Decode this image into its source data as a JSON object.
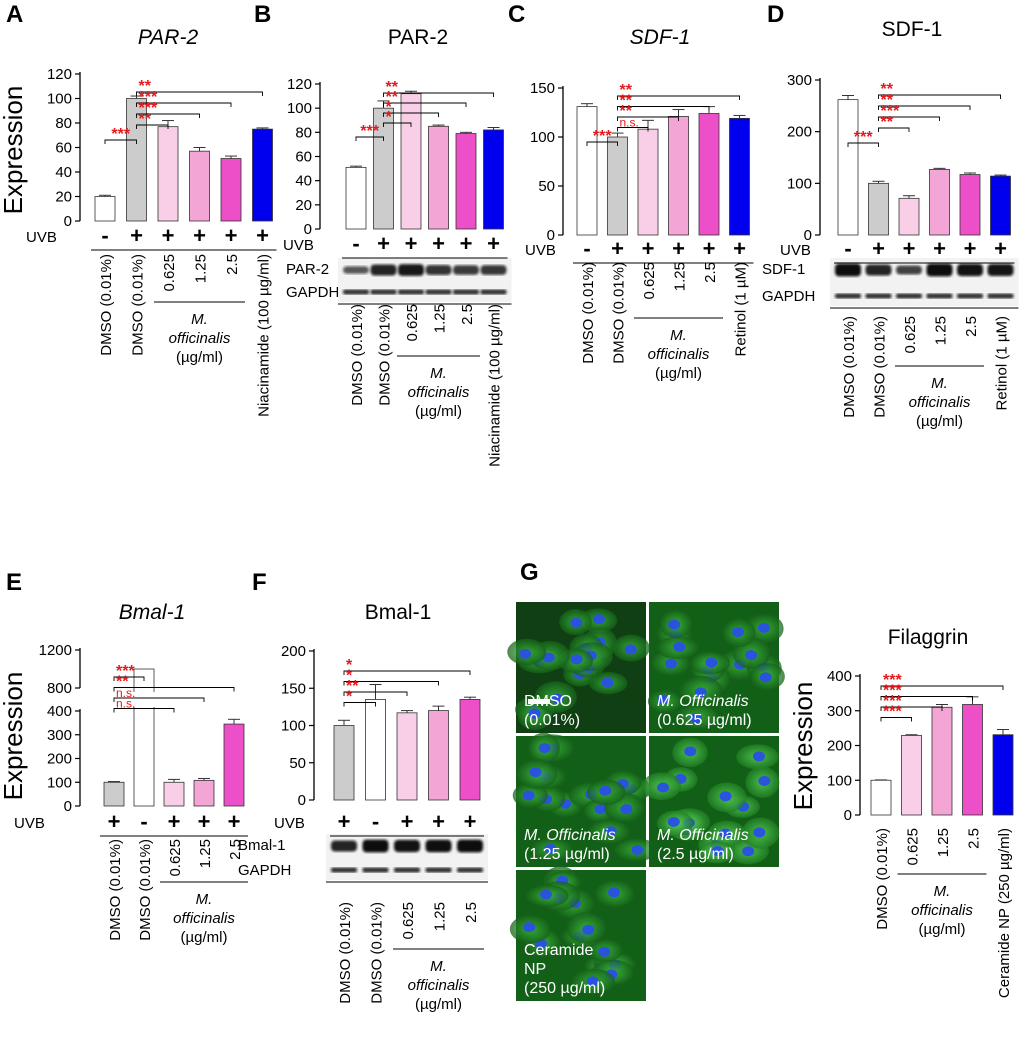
{
  "panels": [
    {
      "letter": "A",
      "title": "PAR-2",
      "title_italic": true,
      "ylabel": "Expression",
      "uvb": [
        "-",
        "+",
        "+",
        "+",
        "+",
        "+"
      ],
      "cat_labels": [
        "DMSO (0.01%)",
        "DMSO (0.01%)",
        "0.625",
        "1.25",
        "2.5",
        "Niacinamide (100 µg/ml)"
      ],
      "mo_label": [
        "M.",
        "officinalis",
        "(µg/ml)"
      ],
      "sig": [
        {
          "text": "***",
          "from": 0,
          "to": 1
        },
        {
          "text": "**",
          "from": 1,
          "to": 5
        },
        {
          "text": "***",
          "from": 1,
          "to": 4
        },
        {
          "text": "***",
          "from": 1,
          "to": 3
        },
        {
          "text": "**",
          "from": 1,
          "to": 2
        }
      ]
    },
    {
      "letter": "B",
      "title": "PAR-2",
      "title_italic": false,
      "uvb": [
        "-",
        "+",
        "+",
        "+",
        "+",
        "+"
      ],
      "cat_labels": [
        "DMSO (0.01%)",
        "DMSO (0.01%)",
        "0.625",
        "1.25",
        "2.5",
        "Niacinamide (100 µg/ml)"
      ],
      "mo_label": [
        "M.",
        "officinalis",
        "(µg/ml)"
      ],
      "blot_labels": [
        "PAR-2",
        "GAPDH"
      ],
      "sig": [
        {
          "text": "***",
          "from": 0,
          "to": 1
        },
        {
          "text": "**",
          "from": 1,
          "to": 5
        },
        {
          "text": "**",
          "from": 1,
          "to": 4
        },
        {
          "text": "*",
          "from": 1,
          "to": 3
        },
        {
          "text": "*",
          "from": 1,
          "to": 2
        }
      ]
    },
    {
      "letter": "C",
      "title": "SDF-1",
      "title_italic": true,
      "uvb": [
        "-",
        "+",
        "+",
        "+",
        "+",
        "+"
      ],
      "cat_labels": [
        "DMSO (0.01%)",
        "DMSO (0.01%)",
        "0.625",
        "1.25",
        "2.5",
        "Retinol (1 µM)"
      ],
      "mo_label": [
        "M.",
        "officinalis",
        "(µg/ml)"
      ],
      "sig": [
        {
          "text": "***",
          "from": 0,
          "to": 1
        },
        {
          "text": "**",
          "from": 1,
          "to": 5
        },
        {
          "text": "**",
          "from": 1,
          "to": 4
        },
        {
          "text": "**",
          "from": 1,
          "to": 3
        },
        {
          "text": "n.s.",
          "from": 1,
          "to": 2
        }
      ]
    },
    {
      "letter": "D",
      "title": "SDF-1",
      "title_italic": false,
      "uvb": [
        "-",
        "+",
        "+",
        "+",
        "+",
        "+"
      ],
      "cat_labels": [
        "DMSO (0.01%)",
        "DMSO (0.01%)",
        "0.625",
        "1.25",
        "2.5",
        "Retinol (1 µM)"
      ],
      "mo_label": [
        "M.",
        "officinalis",
        "(µg/ml)"
      ],
      "blot_labels": [
        "SDF-1",
        "GAPDH"
      ],
      "sig": [
        {
          "text": "***",
          "from": 0,
          "to": 1
        },
        {
          "text": "**",
          "from": 1,
          "to": 5
        },
        {
          "text": "**",
          "from": 1,
          "to": 4
        },
        {
          "text": "***",
          "from": 1,
          "to": 3
        },
        {
          "text": "**",
          "from": 1,
          "to": 2
        }
      ]
    },
    {
      "letter": "E",
      "title": "Bmal-1",
      "title_italic": true,
      "ylabel": "Expression",
      "uvb": [
        "+",
        "-",
        "+",
        "+",
        "+"
      ],
      "cat_labels": [
        "DMSO (0.01%)",
        "DMSO (0.01%)",
        "0.625",
        "1.25",
        "2.5"
      ],
      "mo_label": [
        "M.",
        "officinalis",
        "(µg/ml)"
      ],
      "sig": [
        {
          "text": "***",
          "from": 0,
          "to": 1
        },
        {
          "text": "**",
          "from": 0,
          "to": 4
        },
        {
          "text": "n.s.",
          "from": 0,
          "to": 3
        },
        {
          "text": "n.s.",
          "from": 0,
          "to": 2
        }
      ]
    },
    {
      "letter": "F",
      "title": "Bmal-1",
      "title_italic": false,
      "uvb": [
        "+",
        "-",
        "+",
        "+",
        "+"
      ],
      "cat_labels": [
        "DMSO (0.01%)",
        "DMSO (0.01%)",
        "0.625",
        "1.25",
        "2.5"
      ],
      "mo_label": [
        "M.",
        "officinalis",
        "(µg/ml)"
      ],
      "blot_labels": [
        "Bmal-1",
        "GAPDH"
      ],
      "sig": [
        {
          "text": "*",
          "from": 0,
          "to": 4
        },
        {
          "text": "*",
          "from": 0,
          "to": 3
        },
        {
          "text": "**",
          "from": 0,
          "to": 2
        },
        {
          "text": "*",
          "from": 0,
          "to": 1
        }
      ]
    },
    {
      "letter": "G",
      "title": "Filaggrin",
      "title_italic": false,
      "ylabel": "Expression",
      "cat_labels": [
        "DMSO (0.01%)",
        "0.625",
        "1.25",
        "2.5",
        "Ceramide NP (250 µg/ml)"
      ],
      "mo_label": [
        "M.",
        "officinalis",
        "(µg/ml)"
      ],
      "sig": [
        {
          "text": "***",
          "from": 0,
          "to": 4
        },
        {
          "text": "***",
          "from": 0,
          "to": 3
        },
        {
          "text": "***",
          "from": 0,
          "to": 2
        },
        {
          "text": "***",
          "from": 0,
          "to": 1
        }
      ],
      "micrographs": [
        [
          "DMSO",
          "(0.01%)"
        ],
        [
          "M. Officinalis",
          "(0.625 µg/ml)"
        ],
        [
          "M. Officinalis",
          "(1.25 µg/ml)"
        ],
        [
          "M. Officinalis",
          "(2.5 µg/ml)"
        ],
        [
          "Ceramide",
          "NP",
          "(250 µg/ml)"
        ]
      ]
    }
  ],
  "uvb_label": "UVB",
  "colors": {
    "white": "#ffffff",
    "gray": "#cccccc",
    "light_pink": "#f8cfe6",
    "pink": "#f3a6d6",
    "magenta": "#ec4fc8",
    "blue": "#0000ee",
    "sig_red": "#e41a1c"
  },
  "chart_data": [
    {
      "panel": "A",
      "type": "bar",
      "title": "PAR-2",
      "ylabel": "Expression",
      "ylim": [
        0,
        120
      ],
      "yticks": [
        0,
        20,
        40,
        60,
        80,
        100,
        120
      ],
      "categories": [
        "DMSO (0.01%) -UVB",
        "DMSO (0.01%)",
        "0.625",
        "1.25",
        "2.5",
        "Niacinamide (100 µg/ml)"
      ],
      "values": [
        20,
        100,
        77,
        57,
        51,
        75
      ],
      "errors": [
        1,
        2,
        5,
        3,
        2,
        1
      ],
      "colors": [
        "#ffffff",
        "#cccccc",
        "#f8cfe6",
        "#f3a6d6",
        "#ec4fc8",
        "#0000ee"
      ]
    },
    {
      "panel": "B",
      "type": "bar",
      "title": "PAR-2",
      "ylim": [
        0,
        120
      ],
      "yticks": [
        0,
        20,
        40,
        60,
        80,
        100,
        120
      ],
      "categories": [
        "DMSO (0.01%) -UVB",
        "DMSO (0.01%)",
        "0.625",
        "1.25",
        "2.5",
        "Niacinamide (100 µg/ml)"
      ],
      "values": [
        51,
        100,
        112,
        85,
        79,
        82
      ],
      "errors": [
        1,
        6,
        2,
        1,
        1,
        2
      ],
      "colors": [
        "#ffffff",
        "#cccccc",
        "#f8cfe6",
        "#f3a6d6",
        "#ec4fc8",
        "#0000ee"
      ]
    },
    {
      "panel": "C",
      "type": "bar",
      "title": "SDF-1",
      "ylim": [
        0,
        150
      ],
      "yticks": [
        0,
        50,
        100,
        150
      ],
      "categories": [
        "DMSO (0.01%) -UVB",
        "DMSO (0.01%)",
        "0.625",
        "1.25",
        "2.5",
        "Retinol (1 µM)"
      ],
      "values": [
        131,
        100,
        108,
        121,
        124,
        119
      ],
      "errors": [
        3,
        4,
        9,
        7,
        7,
        3
      ],
      "colors": [
        "#ffffff",
        "#cccccc",
        "#f8cfe6",
        "#f3a6d6",
        "#ec4fc8",
        "#0000ee"
      ]
    },
    {
      "panel": "D",
      "type": "bar",
      "title": "SDF-1",
      "ylim": [
        0,
        300
      ],
      "yticks": [
        0,
        100,
        200,
        300
      ],
      "categories": [
        "DMSO (0.01%) -UVB",
        "DMSO (0.01%)",
        "0.625",
        "1.25",
        "2.5",
        "Retinol (1 µM)"
      ],
      "values": [
        262,
        100,
        71,
        127,
        117,
        114
      ],
      "errors": [
        8,
        4,
        5,
        2,
        3,
        2
      ],
      "colors": [
        "#ffffff",
        "#cccccc",
        "#f8cfe6",
        "#f3a6d6",
        "#ec4fc8",
        "#0000ee"
      ]
    },
    {
      "panel": "E",
      "type": "bar",
      "title": "Bmal-1",
      "ylabel": "Expression",
      "axis_break": true,
      "yticks": [
        0,
        100,
        200,
        300,
        400,
        800,
        1200
      ],
      "categories": [
        "DMSO (0.01%)",
        "DMSO (0.01%) -UVB",
        "0.625",
        "1.25",
        "2.5"
      ],
      "values": [
        100,
        1000,
        100,
        108,
        345
      ],
      "errors": [
        3,
        0,
        12,
        8,
        20
      ],
      "colors": [
        "#cccccc",
        "#ffffff",
        "#f8cfe6",
        "#f3a6d6",
        "#ec4fc8"
      ]
    },
    {
      "panel": "F",
      "type": "bar",
      "title": "Bmal-1",
      "ylim": [
        0,
        200
      ],
      "yticks": [
        0,
        50,
        100,
        150,
        200
      ],
      "categories": [
        "DMSO (0.01%)",
        "DMSO (0.01%) -UVB",
        "0.625",
        "1.25",
        "2.5"
      ],
      "values": [
        100,
        135,
        117,
        120,
        135
      ],
      "errors": [
        7,
        20,
        3,
        6,
        3
      ],
      "colors": [
        "#cccccc",
        "#ffffff",
        "#f8cfe6",
        "#f3a6d6",
        "#ec4fc8"
      ]
    },
    {
      "panel": "G",
      "type": "bar",
      "title": "Filaggrin",
      "ylabel": "Expression",
      "ylim": [
        0,
        400
      ],
      "yticks": [
        0,
        100,
        200,
        300,
        400
      ],
      "categories": [
        "DMSO (0.01%)",
        "0.625",
        "1.25",
        "2.5",
        "Ceramide NP (250 µg/ml)"
      ],
      "values": [
        100,
        229,
        310,
        318,
        231
      ],
      "errors": [
        1,
        2,
        8,
        22,
        15
      ],
      "colors": [
        "#ffffff",
        "#f8cfe6",
        "#f3a6d6",
        "#ec4fc8",
        "#0000ee"
      ]
    }
  ]
}
